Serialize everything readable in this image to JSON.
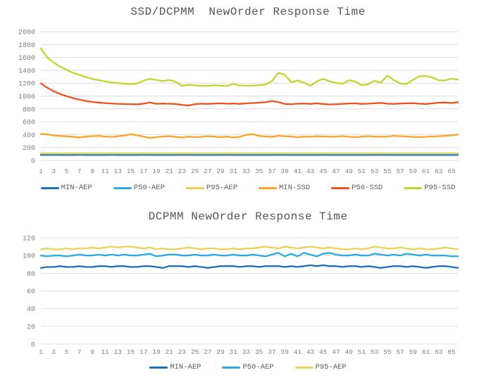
{
  "page": {
    "background": "#ffffff",
    "grid_color": "#dcdcdc",
    "title_color": "#555555",
    "axis_label_color": "#7f7f7f"
  },
  "chart_data": [
    {
      "type": "line",
      "title": "SSD/DCPMM  NewOrder Response Time",
      "xlabel": "",
      "ylabel": "",
      "ylim": [
        0,
        2000
      ],
      "y_step": 200,
      "grid": true,
      "legend_position": "bottom",
      "x_ticks": [
        1,
        3,
        5,
        7,
        9,
        11,
        13,
        15,
        17,
        19,
        21,
        23,
        25,
        27,
        29,
        31,
        33,
        35,
        37,
        39,
        41,
        43,
        45,
        47,
        49,
        51,
        53,
        55,
        57,
        59,
        61,
        63,
        65
      ],
      "series": [
        {
          "name": "MIN-AEP",
          "color": "#1F6FB8",
          "values": [
            85,
            85,
            86,
            85,
            85,
            85,
            86,
            85,
            85,
            85,
            85,
            86,
            85,
            85,
            85,
            85,
            86,
            85,
            85,
            85,
            85,
            85,
            86,
            85,
            85,
            85,
            85,
            85,
            85,
            86,
            85,
            85,
            85,
            85,
            85,
            85,
            85,
            86,
            85,
            85,
            85,
            85,
            85,
            85,
            86,
            85,
            85,
            85,
            85,
            85,
            85,
            85,
            85,
            86,
            85,
            85,
            85,
            85,
            85,
            85,
            85,
            85,
            85,
            85,
            85,
            85
          ]
        },
        {
          "name": "P50-AEP",
          "color": "#29ABE2",
          "values": [
            100,
            100,
            101,
            100,
            100,
            100,
            101,
            100,
            100,
            100,
            100,
            101,
            100,
            100,
            100,
            100,
            101,
            100,
            100,
            100,
            100,
            100,
            101,
            100,
            100,
            100,
            100,
            100,
            100,
            101,
            100,
            100,
            100,
            100,
            100,
            100,
            100,
            101,
            100,
            100,
            100,
            100,
            100,
            100,
            101,
            100,
            100,
            100,
            100,
            100,
            100,
            100,
            100,
            101,
            100,
            100,
            100,
            100,
            100,
            100,
            100,
            100,
            100,
            100,
            100,
            100
          ]
        },
        {
          "name": "P95-AEP",
          "color": "#EDD152",
          "values": [
            112,
            111,
            112,
            111,
            111,
            112,
            111,
            112,
            111,
            111,
            112,
            111,
            112,
            111,
            111,
            112,
            111,
            112,
            111,
            111,
            112,
            111,
            112,
            111,
            111,
            112,
            111,
            112,
            111,
            111,
            112,
            111,
            112,
            111,
            111,
            112,
            111,
            112,
            111,
            111,
            112,
            111,
            112,
            111,
            111,
            112,
            111,
            112,
            111,
            111,
            112,
            111,
            112,
            111,
            111,
            112,
            111,
            112,
            111,
            111,
            112,
            111,
            112,
            111,
            111,
            112
          ]
        },
        {
          "name": "MIN-SSD",
          "color": "#FFA321",
          "values": [
            410,
            406,
            388,
            380,
            374,
            368,
            356,
            370,
            376,
            381,
            370,
            365,
            376,
            386,
            406,
            391,
            371,
            346,
            362,
            371,
            376,
            366,
            356,
            371,
            361,
            366,
            376,
            371,
            361,
            371,
            356,
            366,
            396,
            408,
            381,
            371,
            366,
            381,
            376,
            371,
            361,
            371,
            366,
            376,
            371,
            366,
            371,
            376,
            366,
            361,
            371,
            376,
            371,
            366,
            371,
            381,
            376,
            371,
            366,
            361,
            366,
            371,
            376,
            381,
            391,
            399
          ]
        },
        {
          "name": "P50-SSD",
          "color": "#F4511E",
          "values": [
            1198,
            1128,
            1075,
            1032,
            998,
            968,
            944,
            924,
            908,
            898,
            890,
            884,
            879,
            876,
            873,
            871,
            882,
            900,
            879,
            883,
            880,
            877,
            862,
            853,
            873,
            881,
            878,
            883,
            886,
            881,
            883,
            878,
            886,
            891,
            896,
            905,
            922,
            906,
            878,
            873,
            881,
            883,
            878,
            886,
            876,
            869,
            873,
            879,
            883,
            886,
            878,
            881,
            886,
            893,
            881,
            878,
            883,
            886,
            889,
            881,
            876,
            886,
            896,
            899,
            891,
            904
          ]
        },
        {
          "name": "P95-SSD",
          "color": "#C2D52E",
          "values": [
            1740,
            1598,
            1520,
            1458,
            1408,
            1362,
            1328,
            1296,
            1268,
            1246,
            1228,
            1212,
            1200,
            1192,
            1186,
            1196,
            1238,
            1266,
            1248,
            1232,
            1248,
            1222,
            1160,
            1174,
            1166,
            1160,
            1158,
            1168,
            1160,
            1158,
            1188,
            1164,
            1160,
            1162,
            1168,
            1178,
            1230,
            1360,
            1330,
            1215,
            1240,
            1205,
            1160,
            1225,
            1268,
            1228,
            1205,
            1188,
            1245,
            1225,
            1168,
            1182,
            1238,
            1205,
            1318,
            1248,
            1195,
            1188,
            1250,
            1308,
            1312,
            1288,
            1245,
            1242,
            1268,
            1256
          ]
        }
      ]
    },
    {
      "type": "line",
      "title": "DCPMM NewOrder Response Time",
      "xlabel": "",
      "ylabel": "",
      "ylim": [
        0,
        120
      ],
      "y_step": 20,
      "grid": true,
      "legend_position": "bottom",
      "x_ticks": [
        1,
        3,
        5,
        7,
        9,
        11,
        13,
        15,
        17,
        19,
        21,
        23,
        25,
        27,
        29,
        31,
        33,
        35,
        37,
        39,
        41,
        43,
        45,
        47,
        49,
        51,
        53,
        55,
        57,
        59,
        61,
        63,
        65
      ],
      "series": [
        {
          "name": "MIN-AEP",
          "color": "#1F6FB8",
          "values": [
            86,
            87,
            87,
            88,
            87,
            87,
            88,
            87,
            87,
            88,
            88,
            87,
            88,
            88,
            87,
            87,
            88,
            88,
            87,
            86,
            88,
            88,
            88,
            87,
            88,
            87,
            86,
            87,
            88,
            88,
            88,
            87,
            88,
            88,
            87,
            88,
            88,
            88,
            87,
            88,
            87,
            88,
            89,
            88,
            89,
            88,
            88,
            87,
            88,
            88,
            87,
            88,
            87,
            86,
            87,
            88,
            88,
            87,
            88,
            87,
            86,
            87,
            88,
            88,
            87,
            86
          ]
        },
        {
          "name": "P50-AEP",
          "color": "#29ABE2",
          "values": [
            100,
            99,
            100,
            100,
            99,
            100,
            101,
            100,
            100,
            101,
            100,
            101,
            100,
            101,
            100,
            100,
            101,
            102,
            99,
            100,
            101,
            101,
            100,
            100,
            101,
            100,
            100,
            101,
            100,
            100,
            101,
            100,
            100,
            101,
            100,
            99,
            101,
            103,
            99,
            102,
            99,
            103,
            101,
            99,
            102,
            103,
            101,
            100,
            100,
            101,
            100,
            100,
            102,
            101,
            100,
            101,
            100,
            102,
            101,
            100,
            101,
            100,
            100,
            100,
            99,
            99
          ]
        },
        {
          "name": "P95-AEP",
          "color": "#EDD152",
          "values": [
            107,
            108,
            107,
            107,
            108,
            107,
            108,
            108,
            109,
            108,
            109,
            110,
            109,
            110,
            110,
            109,
            108,
            109,
            107,
            108,
            107,
            107,
            108,
            109,
            108,
            107,
            108,
            108,
            107,
            107,
            108,
            107,
            108,
            108,
            109,
            110,
            109,
            108,
            110,
            109,
            108,
            109,
            110,
            109,
            108,
            109,
            108,
            107,
            107,
            108,
            107,
            108,
            110,
            109,
            108,
            108,
            109,
            108,
            107,
            108,
            107,
            107,
            108,
            109,
            108,
            107
          ]
        }
      ]
    }
  ]
}
